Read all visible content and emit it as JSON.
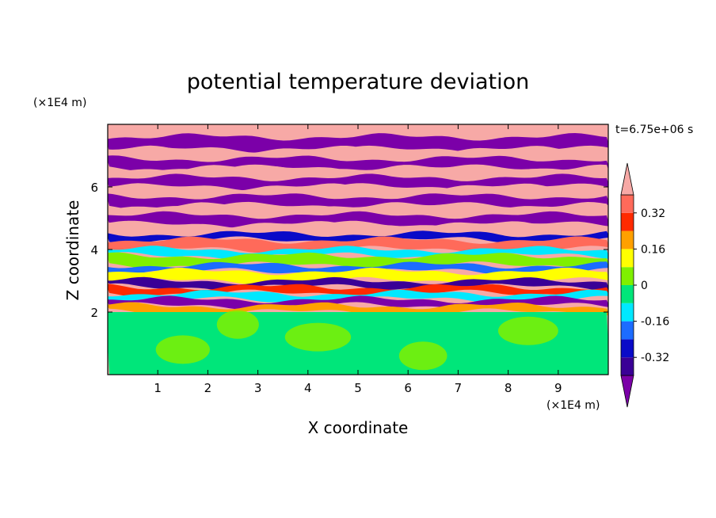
{
  "chart_data": {
    "type": "heatmap",
    "title": "potential temperature deviation",
    "xlabel": "X coordinate",
    "ylabel": "Z coordinate",
    "x_unit": "(×1E4 m)",
    "y_unit": "(×1E4 m)",
    "time_label": "t=6.75e+06 s",
    "xlim": [
      0,
      10
    ],
    "ylim": [
      0,
      8
    ],
    "x_ticks": [
      "1",
      "2",
      "3",
      "4",
      "5",
      "6",
      "7",
      "8",
      "9"
    ],
    "y_ticks": [
      "2",
      "4",
      "6"
    ],
    "colorbar": {
      "tick_labels": [
        "0.32",
        "0.16",
        "0",
        "-0.16",
        "-0.32"
      ],
      "tick_values": [
        0.32,
        0.16,
        0,
        -0.16,
        -0.32
      ],
      "levels": [
        -0.4,
        -0.32,
        -0.24,
        -0.16,
        -0.08,
        0,
        0.08,
        0.16,
        0.24,
        0.32,
        0.4
      ],
      "colors": [
        "#7b00a8",
        "#3a0096",
        "#0a0ac8",
        "#1c6cff",
        "#00e8ff",
        "#00e67a",
        "#7ff000",
        "#ffff00",
        "#ffa000",
        "#ff2a00",
        "#ff6a5a",
        "#f7a9a6"
      ],
      "extend": "both"
    },
    "bands": [
      {
        "z": [
          7.6,
          8.0
        ],
        "color": "#f7a9a6"
      },
      {
        "z": [
          7.2,
          7.6
        ],
        "color": "#7b00a8"
      },
      {
        "z": [
          6.9,
          7.2
        ],
        "color": "#f7a9a6"
      },
      {
        "z": [
          6.6,
          6.9
        ],
        "color": "#7b00a8"
      },
      {
        "z": [
          6.3,
          6.6
        ],
        "color": "#f7a9a6"
      },
      {
        "z": [
          6.0,
          6.3
        ],
        "color": "#7b00a8"
      },
      {
        "z": [
          5.7,
          6.0
        ],
        "color": "#f7a9a6"
      },
      {
        "z": [
          5.4,
          5.7
        ],
        "color": "#7b00a8"
      },
      {
        "z": [
          5.1,
          5.4
        ],
        "color": "#f7a9a6"
      },
      {
        "z": [
          4.8,
          5.1
        ],
        "color": "#7b00a8"
      },
      {
        "z": [
          4.5,
          4.8
        ],
        "color": "#f7a9a6"
      },
      {
        "z": [
          4.3,
          4.5
        ],
        "color": "#0a0ac8"
      },
      {
        "z": [
          4.0,
          4.3
        ],
        "color": "#ff6a5a"
      },
      {
        "z": [
          3.8,
          4.0
        ],
        "color": "#00e8ff"
      },
      {
        "z": [
          3.5,
          3.8
        ],
        "color": "#7ff000"
      },
      {
        "z": [
          3.3,
          3.5
        ],
        "color": "#1c6cff"
      },
      {
        "z": [
          3.0,
          3.3
        ],
        "color": "#ffff00"
      },
      {
        "z": [
          2.8,
          3.0
        ],
        "color": "#3a0096"
      },
      {
        "z": [
          2.6,
          2.8
        ],
        "color": "#ff2a00"
      },
      {
        "z": [
          2.4,
          2.6
        ],
        "color": "#00e8ff"
      },
      {
        "z": [
          2.2,
          2.4
        ],
        "color": "#7b00a8"
      },
      {
        "z": [
          2.0,
          2.2
        ],
        "color": "#ffa000"
      },
      {
        "z": [
          0.0,
          2.0
        ],
        "color": "#00e67a"
      }
    ]
  }
}
